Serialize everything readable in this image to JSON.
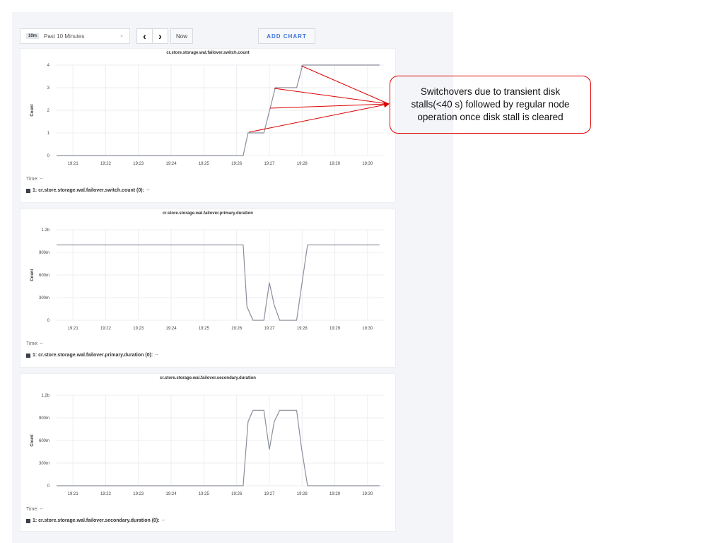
{
  "toolbar": {
    "range_badge": "10m",
    "range_label": "Past 10 Minutes",
    "prev_icon": "chevron-left-icon",
    "next_icon": "chevron-right-icon",
    "now_label": "Now",
    "add_chart_label": "ADD CHART"
  },
  "annotation": {
    "text": "Switchovers due to transient disk stalls(<40 s) followed by regular node operation once disk stall is cleared",
    "color": "#dd0000"
  },
  "chart_data": [
    {
      "type": "line",
      "title": "cr.store.storage.wal.failover.switch.count",
      "ylabel": "Count",
      "xlabel": "",
      "ylim": [
        0,
        4
      ],
      "yticks": [
        0,
        1,
        2,
        3,
        4
      ],
      "ytick_labels": [
        "0",
        "1",
        "2",
        "3",
        "4"
      ],
      "xlim": [
        "19:20:30",
        "19:30:30"
      ],
      "xtick_labels": [
        "19:21",
        "19:22",
        "19:23",
        "19:24",
        "19:25",
        "19:26",
        "19:27",
        "19:28",
        "19:29",
        "19:30"
      ],
      "grid": true,
      "color": "#8a8f9c",
      "time_label": "Time:",
      "time_value": "--",
      "legend": "1: cr.store.storage.wal.failover.switch.count (0):",
      "legend_value": "--",
      "series": [
        {
          "x": [
            "19:20:30",
            "19:26:12",
            "19:26:21",
            "19:26:50",
            "19:27:11",
            "19:27:50",
            "19:28:01",
            "19:30:22"
          ],
          "y": [
            0,
            0,
            1,
            1,
            3,
            3,
            4,
            4
          ]
        }
      ]
    },
    {
      "type": "line",
      "title": "cr.store.storage.wal.failover.primary.duration",
      "ylabel": "Count",
      "xlabel": "",
      "ylim": [
        0,
        1.2
      ],
      "yticks": [
        0,
        0.3,
        0.6,
        0.9,
        1.2
      ],
      "ytick_labels": [
        "0",
        "300m",
        "600m",
        "900m",
        "1.2b"
      ],
      "xlim": [
        "19:20:30",
        "19:30:30"
      ],
      "xtick_labels": [
        "19:21",
        "19:22",
        "19:23",
        "19:24",
        "19:25",
        "19:26",
        "19:27",
        "19:28",
        "19:29",
        "19:30"
      ],
      "grid": true,
      "color": "#8a8f9c",
      "time_label": "Time:",
      "time_value": "--",
      "legend": "1: cr.store.storage.wal.failover.primary.duration (0):",
      "legend_value": "--",
      "series": [
        {
          "x": [
            "19:20:30",
            "19:26:12",
            "19:26:19",
            "19:26:30",
            "19:26:50",
            "19:27:00",
            "19:27:09",
            "19:27:19",
            "19:27:50",
            "19:27:59",
            "19:28:10",
            "19:30:22"
          ],
          "y": [
            1,
            1,
            0.18,
            0,
            0,
            0.5,
            0.2,
            0,
            0,
            0.45,
            1,
            1
          ]
        }
      ]
    },
    {
      "type": "line",
      "title": "cr.store.storage.wal.failover.secondary.duration",
      "ylabel": "Count",
      "xlabel": "",
      "ylim": [
        0,
        1.2
      ],
      "yticks": [
        0,
        0.3,
        0.6,
        0.9,
        1.2
      ],
      "ytick_labels": [
        "0",
        "300m",
        "600m",
        "900m",
        "1.2b"
      ],
      "xlim": [
        "19:20:30",
        "19:30:30"
      ],
      "xtick_labels": [
        "19:21",
        "19:22",
        "19:23",
        "19:24",
        "19:25",
        "19:26",
        "19:27",
        "19:28",
        "19:29",
        "19:30"
      ],
      "grid": true,
      "color": "#8a8f9c",
      "time_label": "Time:",
      "time_value": "--",
      "legend": "1: cr.store.storage.wal.failover.secondary.duration (0):",
      "legend_value": "--",
      "series": [
        {
          "x": [
            "19:20:30",
            "19:26:12",
            "19:26:21",
            "19:26:30",
            "19:26:50",
            "19:27:00",
            "19:27:09",
            "19:27:19",
            "19:27:50",
            "19:27:59",
            "19:28:10",
            "19:30:22"
          ],
          "y": [
            0,
            0,
            0.85,
            1,
            1,
            0.48,
            0.85,
            1,
            1,
            0.5,
            0,
            0
          ]
        }
      ]
    }
  ]
}
